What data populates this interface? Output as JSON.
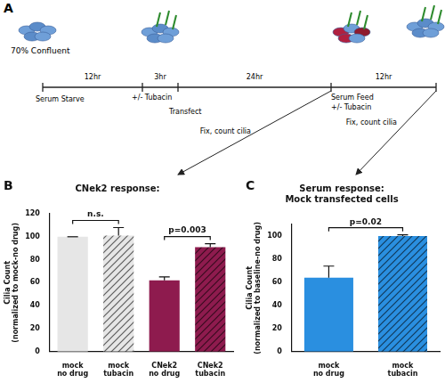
{
  "diagram": {
    "label": "A",
    "cells_label": "70% Confluent",
    "intervals": [
      "12hr",
      "3hr",
      "24hr",
      "12hr"
    ],
    "events": [
      [
        "Serum Starve"
      ],
      [
        "+/- Tubacin"
      ],
      [
        "Transfect"
      ],
      [
        "Serum Feed",
        "+/- Tubacin"
      ]
    ],
    "readouts": [
      "Fix, count cilia",
      "Fix, count cilia"
    ]
  },
  "chart_data": [
    {
      "type": "bar",
      "panel": "B",
      "title": "CNek2 response:",
      "ylabel": [
        "Cilia Count",
        "(normalized to mock-no drug)"
      ],
      "categories": [
        "mock no drug",
        "mock tubacin",
        "CNek2 no drug",
        "CNek2 tubacin"
      ],
      "values": [
        100,
        101,
        62,
        91
      ],
      "errors": [
        0,
        7,
        3,
        3
      ],
      "colors": [
        "#e6e6e6",
        "#e6e6e6",
        "#8e1b4e",
        "#8e1b4e"
      ],
      "ylim": [
        0,
        120
      ],
      "yticks": [
        0,
        20,
        40,
        60,
        80,
        100,
        120
      ],
      "grid": false,
      "annotations": [
        {
          "text": "n.s.",
          "categories": [
            "mock no drug",
            "mock tubacin"
          ]
        },
        {
          "text": "p=0.003",
          "categories": [
            "CNek2 no drug",
            "CNek2 tubacin"
          ]
        }
      ]
    },
    {
      "type": "bar",
      "panel": "C",
      "title": [
        "Serum response:",
        "Mock transfected cells"
      ],
      "ylabel": [
        "Cilia Count",
        "(normalized to baseline-no drug)"
      ],
      "categories": [
        "mock no drug",
        "mock tubacin"
      ],
      "values": [
        64,
        100
      ],
      "errors": [
        10,
        1
      ],
      "colors": [
        "#2a8fe0",
        "#2a8fe0"
      ],
      "ylim": [
        0,
        110
      ],
      "yticks": [
        0,
        20,
        40,
        60,
        80,
        100
      ],
      "grid": false,
      "annotations": [
        {
          "text": "p=0.02",
          "categories": [
            "mock no drug",
            "mock tubacin"
          ]
        }
      ]
    }
  ]
}
